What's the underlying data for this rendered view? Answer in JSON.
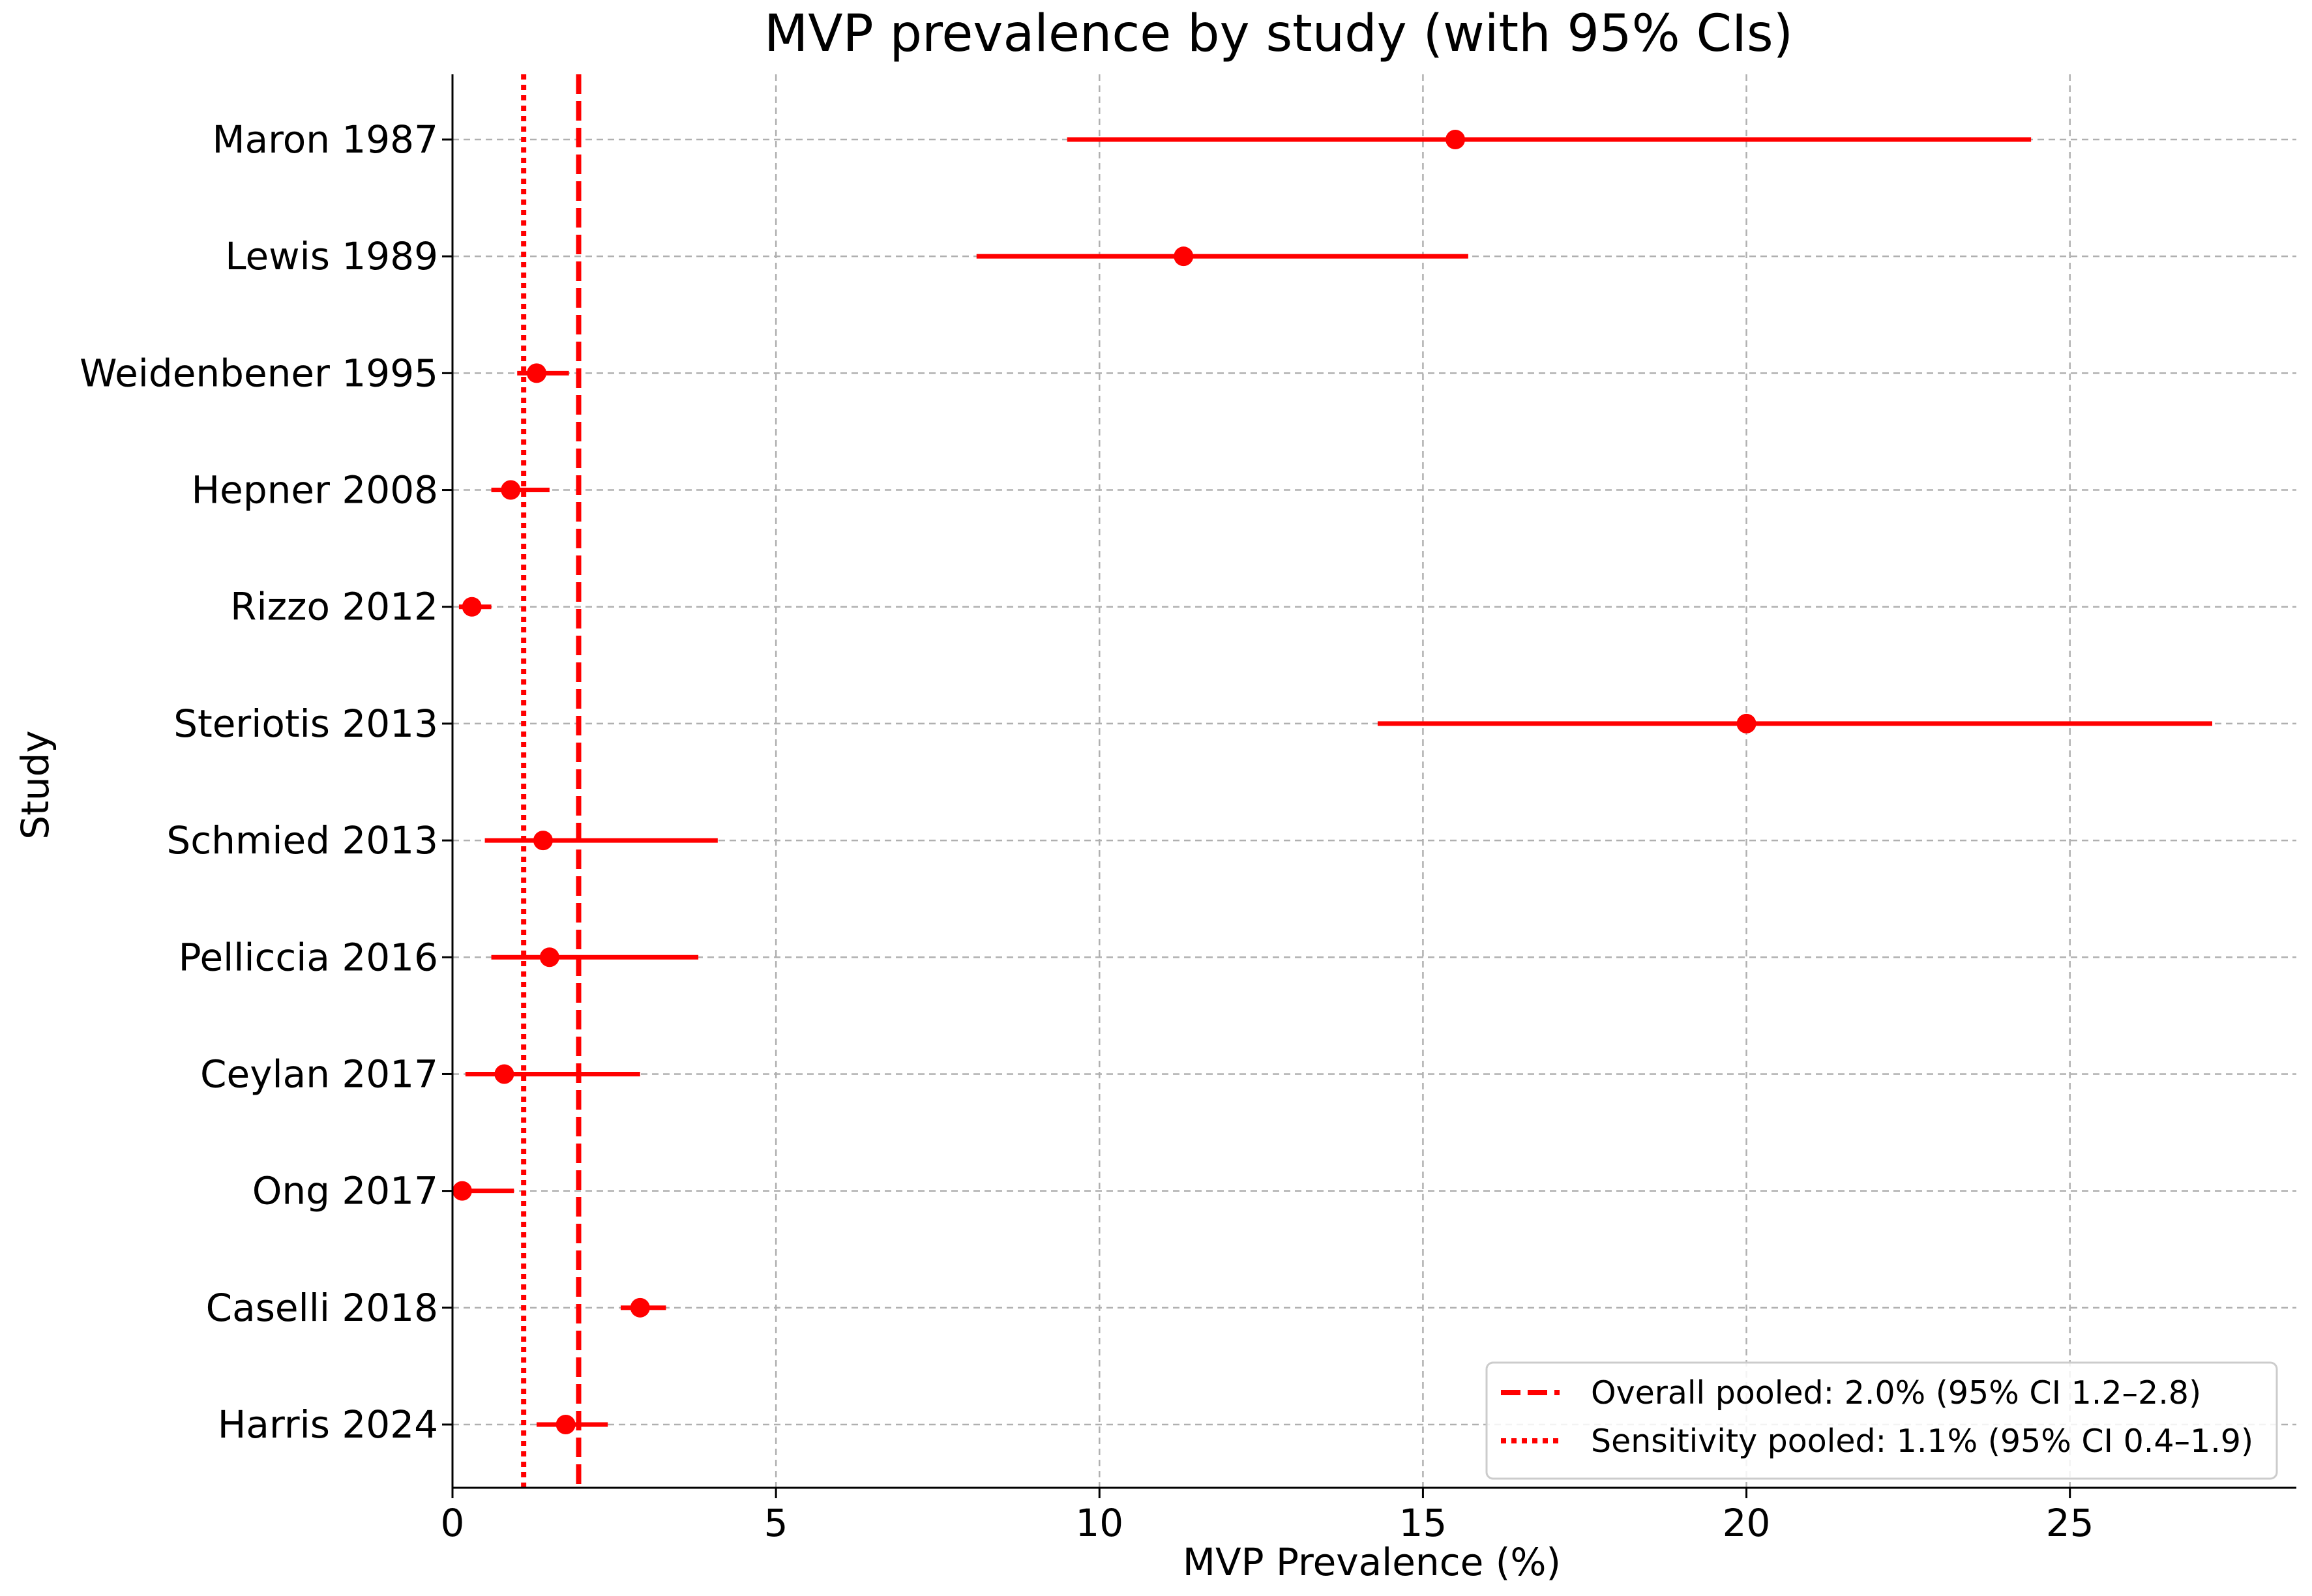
{
  "chart_data": {
    "type": "forest",
    "title": "MVP prevalence by study (with 95% CIs)",
    "xlabel": "MVP Prevalence (%)",
    "ylabel": "Study",
    "xlim": [
      0,
      28.5
    ],
    "xticks": [
      0,
      5,
      10,
      15,
      20,
      25
    ],
    "grid": true,
    "legend_position": "lower-right",
    "color": "#ff0000",
    "studies": [
      {
        "label": "Maron 1987",
        "estimate": 15.5,
        "ci_low": 9.5,
        "ci_high": 24.4
      },
      {
        "label": "Lewis 1989",
        "estimate": 11.3,
        "ci_low": 8.1,
        "ci_high": 15.7
      },
      {
        "label": "Weidenbener 1995",
        "estimate": 1.3,
        "ci_low": 1.0,
        "ci_high": 1.8
      },
      {
        "label": "Hepner 2008",
        "estimate": 0.9,
        "ci_low": 0.6,
        "ci_high": 1.5
      },
      {
        "label": "Rizzo 2012",
        "estimate": 0.3,
        "ci_low": 0.1,
        "ci_high": 0.6
      },
      {
        "label": "Steriotis 2013",
        "estimate": 20.0,
        "ci_low": 14.3,
        "ci_high": 27.2
      },
      {
        "label": "Schmied 2013",
        "estimate": 1.4,
        "ci_low": 0.5,
        "ci_high": 4.1
      },
      {
        "label": "Pelliccia 2016",
        "estimate": 1.5,
        "ci_low": 0.6,
        "ci_high": 3.8
      },
      {
        "label": "Ceylan 2017",
        "estimate": 0.8,
        "ci_low": 0.2,
        "ci_high": 2.9
      },
      {
        "label": "Ong 2017",
        "estimate": 0.15,
        "ci_low": 0.0,
        "ci_high": 0.95
      },
      {
        "label": "Caselli 2018",
        "estimate": 2.9,
        "ci_low": 2.6,
        "ci_high": 3.3
      },
      {
        "label": "Harris 2024",
        "estimate": 1.75,
        "ci_low": 1.3,
        "ci_high": 2.4
      }
    ],
    "reference_lines": [
      {
        "name": "Overall pooled: 2.0% (95% CI 1.2–2.8)",
        "value": 1.95,
        "style": "dashed"
      },
      {
        "name": "Sensitivity pooled: 1.1% (95% CI 0.4–1.9)",
        "value": 1.1,
        "style": "dotted"
      }
    ]
  }
}
